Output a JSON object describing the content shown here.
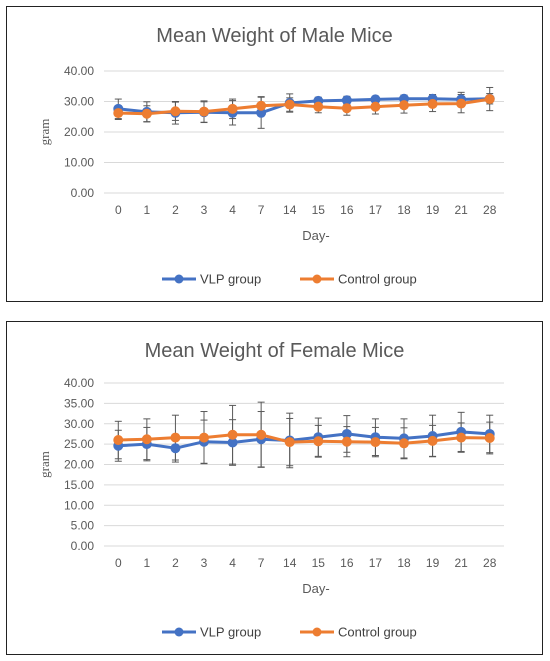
{
  "chart_data": [
    {
      "type": "line",
      "title": "Mean Weight of Male Mice",
      "xlabel": "Day-",
      "ylabel": "gram",
      "ylim": [
        0,
        40
      ],
      "y_ticks": [
        "0.00",
        "10.00",
        "20.00",
        "30.00",
        "40.00"
      ],
      "categories": [
        "0",
        "1",
        "2",
        "3",
        "4",
        "7",
        "14",
        "15",
        "16",
        "17",
        "18",
        "19",
        "21",
        "28"
      ],
      "grid": true,
      "legend_position": "bottom",
      "series": [
        {
          "name": "VLP group",
          "color": "#4472C4",
          "values": [
            27.6,
            26.6,
            26.3,
            26.5,
            26.3,
            26.3,
            29.5,
            30.2,
            30.4,
            30.7,
            30.9,
            30.9,
            30.7,
            30.9
          ],
          "error": [
            3.2,
            3.3,
            3.7,
            3.4,
            4.0,
            5.1,
            3.0,
            1.2,
            1.3,
            1.1,
            1.2,
            1.4,
            2.3,
            1.7
          ]
        },
        {
          "name": "Control group",
          "color": "#ED7D31",
          "values": [
            26.2,
            26.0,
            26.8,
            26.7,
            27.6,
            28.6,
            29.0,
            28.3,
            27.8,
            28.3,
            28.8,
            29.2,
            29.3,
            30.8
          ],
          "error": [
            2.1,
            2.6,
            3.0,
            3.5,
            3.2,
            3.0,
            2.2,
            2.0,
            2.3,
            2.4,
            2.6,
            2.5,
            3.0,
            3.8
          ]
        }
      ]
    },
    {
      "type": "line",
      "title": "Mean Weight of Female Mice",
      "xlabel": "Day-",
      "ylabel": "gram",
      "ylim": [
        0,
        40
      ],
      "y_ticks": [
        "0.00",
        "5.00",
        "10.00",
        "15.00",
        "20.00",
        "25.00",
        "30.00",
        "35.00",
        "40.00"
      ],
      "categories": [
        "0",
        "1",
        "2",
        "3",
        "4",
        "7",
        "14",
        "15",
        "16",
        "17",
        "18",
        "19",
        "21",
        "28"
      ],
      "grid": true,
      "legend_position": "bottom",
      "series": [
        {
          "name": "VLP group",
          "color": "#4472C4",
          "values": [
            24.6,
            25.0,
            24.0,
            25.6,
            25.4,
            26.2,
            25.9,
            26.7,
            27.5,
            26.7,
            26.4,
            27.0,
            28.0,
            27.5
          ],
          "error": [
            3.8,
            4.1,
            3.4,
            5.3,
            5.6,
            6.8,
            6.7,
            4.7,
            4.5,
            4.5,
            4.8,
            5.1,
            4.8,
            4.6
          ]
        },
        {
          "name": "Control group",
          "color": "#ED7D31",
          "values": [
            26.0,
            26.2,
            26.6,
            26.6,
            27.3,
            27.3,
            25.5,
            25.7,
            25.6,
            25.5,
            25.2,
            25.8,
            26.6,
            26.5
          ],
          "error": [
            4.6,
            5.0,
            5.5,
            6.4,
            7.2,
            8.0,
            5.8,
            3.9,
            3.7,
            3.6,
            3.8,
            3.8,
            3.6,
            3.9
          ]
        }
      ]
    }
  ]
}
